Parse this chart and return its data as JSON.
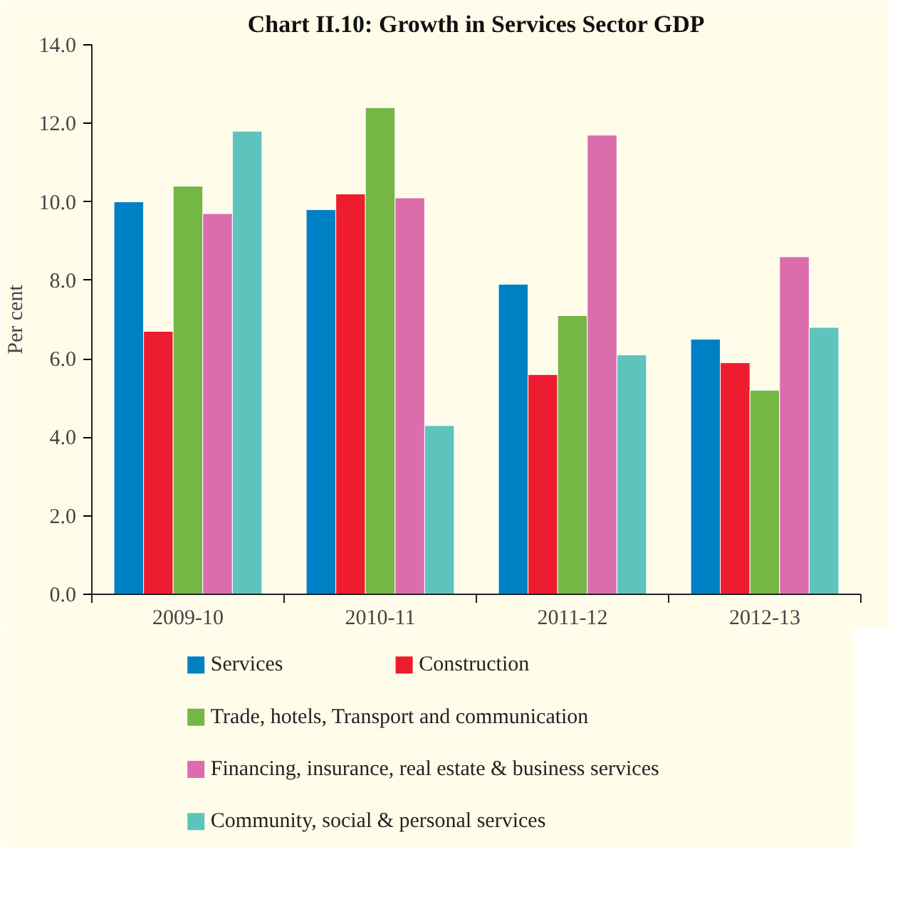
{
  "chart_data": {
    "type": "bar",
    "title": "Chart II.10: Growth in Services Sector GDP",
    "ylabel": "Per cent",
    "categories": [
      "2009-10",
      "2010-11",
      "2011-12",
      "2012-13"
    ],
    "series": [
      {
        "name": "Services",
        "color": "#0080c4",
        "values": [
          10.0,
          9.8,
          7.9,
          6.5
        ]
      },
      {
        "name": "Construction",
        "color": "#ed1c2e",
        "values": [
          6.7,
          10.2,
          5.6,
          5.9
        ]
      },
      {
        "name": "Trade, hotels, Transport and communication",
        "color": "#74b744",
        "values": [
          10.4,
          12.4,
          7.1,
          5.2
        ]
      },
      {
        "name": "Financing, insurance, real estate & business services",
        "color": "#db6dac",
        "values": [
          9.7,
          10.1,
          11.7,
          8.6
        ]
      },
      {
        "name": "Community, social & personal services",
        "color": "#5dc4bd",
        "values": [
          11.8,
          4.3,
          6.1,
          6.8
        ]
      }
    ],
    "ylim": [
      0,
      14
    ],
    "yticks": [
      {
        "value": 0,
        "label": "0.0"
      },
      {
        "value": 2,
        "label": "2.0"
      },
      {
        "value": 4,
        "label": "4.0"
      },
      {
        "value": 6,
        "label": "6.0"
      },
      {
        "value": 8,
        "label": "8.0"
      },
      {
        "value": 10,
        "label": "10.0"
      },
      {
        "value": 12,
        "label": "12.0"
      },
      {
        "value": 14,
        "label": "14.0"
      }
    ],
    "grid": false,
    "legend": "bottom"
  }
}
